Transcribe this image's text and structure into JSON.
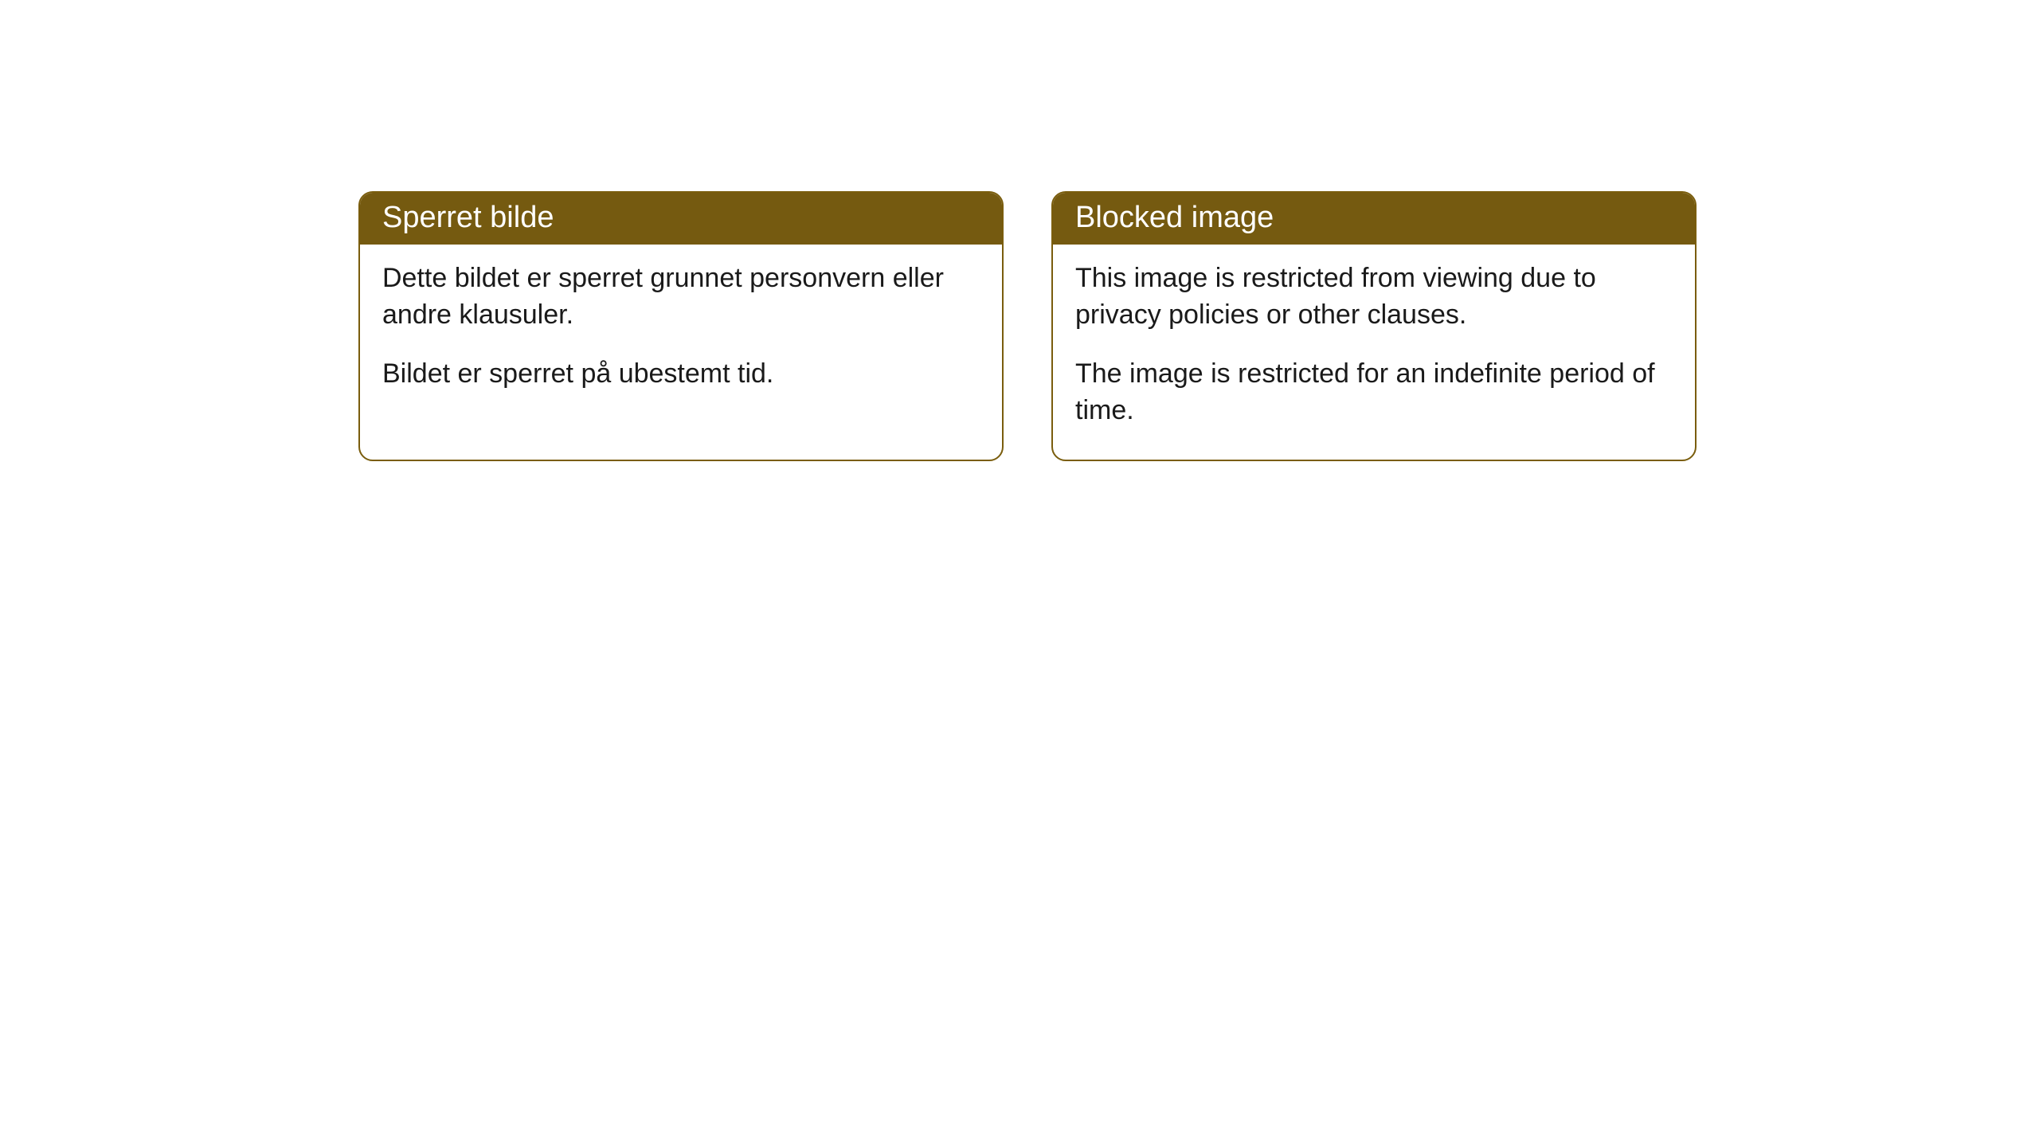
{
  "cards": [
    {
      "title": "Sperret bilde",
      "paragraph1": "Dette bildet er sperret grunnet personvern eller andre klausuler.",
      "paragraph2": "Bildet er sperret på ubestemt tid."
    },
    {
      "title": "Blocked image",
      "paragraph1": "This image is restricted from viewing due to privacy policies or other clauses.",
      "paragraph2": "The image is restricted for an indefinite period of time."
    }
  ],
  "styling": {
    "header_bg_color": "#755a10",
    "header_text_color": "#ffffff",
    "border_color": "#7a5d0d",
    "body_bg_color": "#ffffff",
    "body_text_color": "#1a1a1a",
    "border_radius": 18,
    "header_fontsize": 38,
    "body_fontsize": 34
  }
}
